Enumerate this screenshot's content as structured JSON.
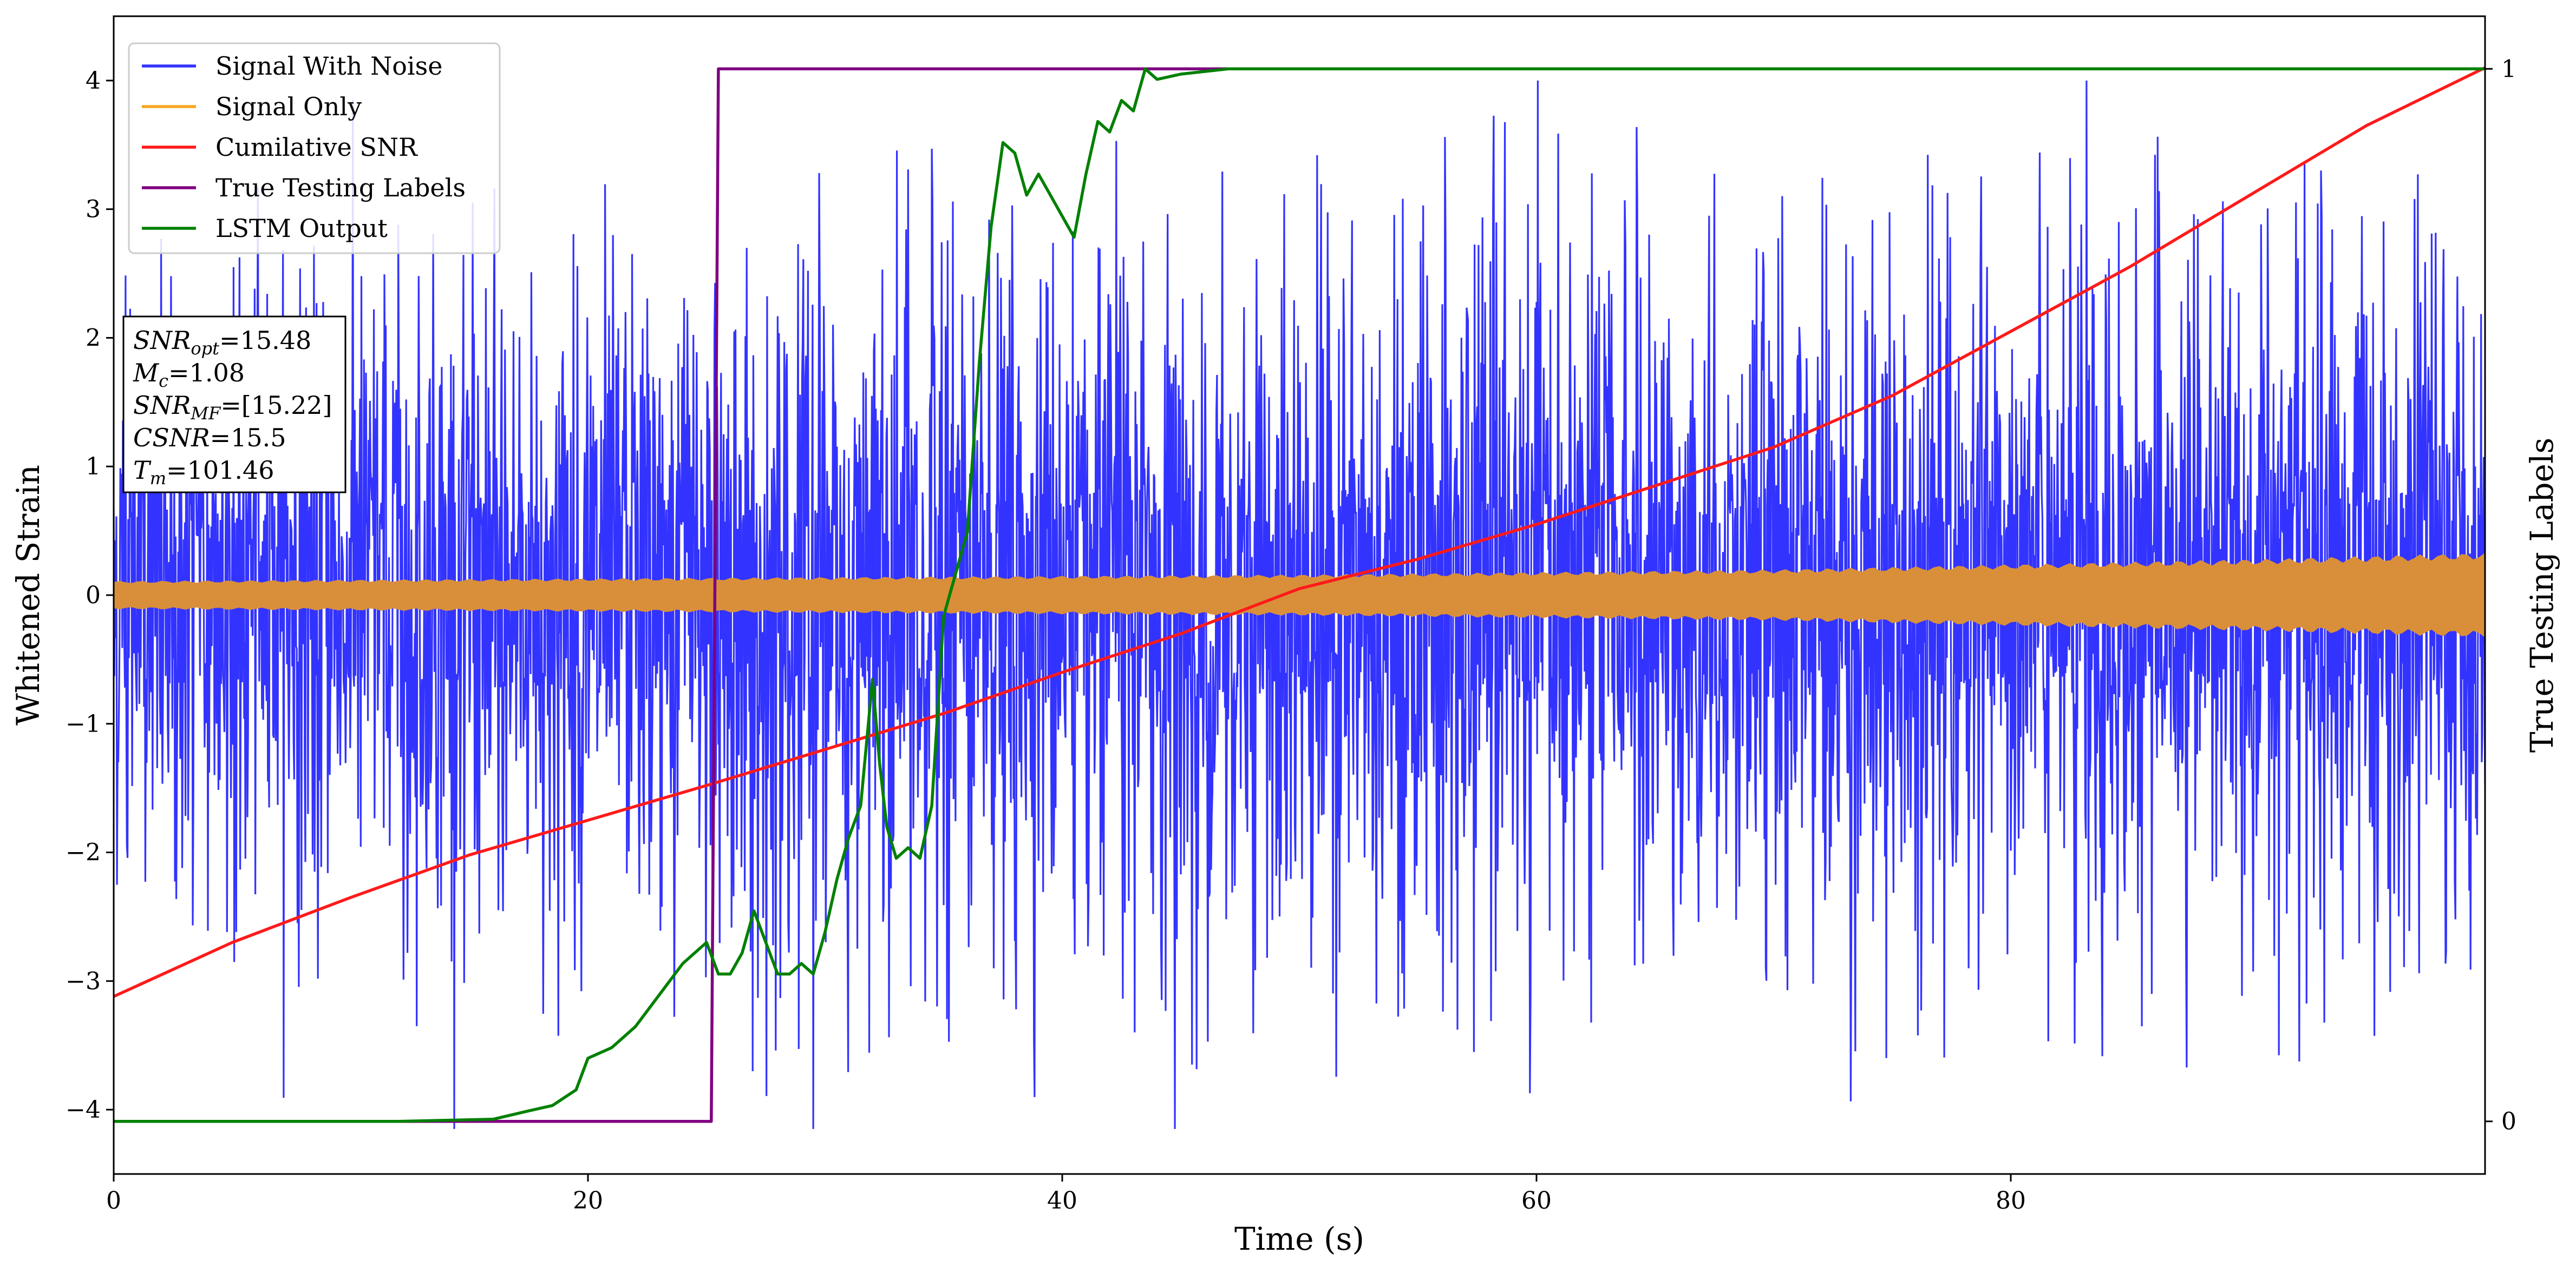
{
  "chart_data": {
    "type": "line",
    "xlabel": "Time (s)",
    "ylabel": "Whitened Strain",
    "ylabel_right": "True Testing Labels",
    "xlim": [
      0,
      100
    ],
    "ylim": [
      -4.5,
      4.5
    ],
    "ylim_right": [
      -0.05,
      1.05
    ],
    "x_ticks": [
      "0",
      "20",
      "40",
      "60",
      "80"
    ],
    "y_ticks": [
      "−4",
      "−3",
      "−2",
      "−1",
      "0",
      "1",
      "2",
      "3",
      "4"
    ],
    "y_ticks_right": [
      "0",
      "1"
    ],
    "legend_position": "top-left",
    "series": [
      {
        "name": "Signal With Noise",
        "color": "#3333ff",
        "axis": "left",
        "kind": "noise",
        "envelope_x": [
          0,
          10,
          20,
          30,
          40,
          50,
          60,
          70,
          80,
          90,
          100
        ],
        "envelope_amplitude": [
          2.6,
          2.8,
          2.8,
          3.0,
          3.1,
          3.2,
          3.1,
          3.0,
          3.0,
          3.1,
          3.0
        ]
      },
      {
        "name": "Signal Only",
        "color": "#f5a623",
        "render_color": "#d98f3a",
        "axis": "left",
        "kind": "band",
        "x": [
          0,
          10,
          20,
          30,
          40,
          50,
          60,
          70,
          80,
          90,
          100
        ],
        "amplitude": [
          0.11,
          0.12,
          0.13,
          0.14,
          0.15,
          0.16,
          0.18,
          0.2,
          0.24,
          0.28,
          0.33
        ]
      },
      {
        "name": "Cumilative SNR",
        "color": "#ff1a1a",
        "axis": "left",
        "x": [
          0,
          5,
          10,
          15,
          20,
          25,
          30,
          35,
          40,
          45,
          50,
          55,
          60,
          65,
          70,
          75,
          80,
          85,
          90,
          95,
          100
        ],
        "y": [
          -3.12,
          -2.7,
          -2.35,
          -2.02,
          -1.75,
          -1.48,
          -1.2,
          -0.92,
          -0.6,
          -0.3,
          0.05,
          0.28,
          0.55,
          0.85,
          1.15,
          1.55,
          2.05,
          2.55,
          3.1,
          3.65,
          4.1
        ]
      },
      {
        "name": "True Testing Labels",
        "color": "#800080",
        "axis": "right",
        "x": [
          0,
          25.2,
          25.5,
          60
        ],
        "y": [
          0,
          0,
          1,
          1
        ]
      },
      {
        "name": "LSTM Output",
        "color": "#008000",
        "axis": "right",
        "x": [
          0,
          12,
          16,
          17.5,
          18.5,
          19.5,
          20,
          21,
          22,
          23,
          24,
          25,
          25.5,
          26,
          26.5,
          27,
          27.5,
          28,
          28.5,
          29,
          29.5,
          30,
          30.5,
          31,
          31.5,
          32,
          32.3,
          32.6,
          33,
          33.5,
          34,
          34.5,
          35,
          35.5,
          36,
          36.5,
          37,
          37.5,
          38,
          38.5,
          39,
          39.5,
          40,
          40.5,
          41,
          41.5,
          42,
          42.5,
          43,
          43.5,
          44,
          45,
          47,
          50,
          55,
          60,
          100
        ],
        "y": [
          0,
          0,
          0.002,
          0.01,
          0.015,
          0.03,
          0.06,
          0.07,
          0.09,
          0.12,
          0.15,
          0.17,
          0.14,
          0.14,
          0.16,
          0.2,
          0.17,
          0.14,
          0.14,
          0.15,
          0.14,
          0.18,
          0.23,
          0.27,
          0.3,
          0.42,
          0.34,
          0.28,
          0.25,
          0.26,
          0.25,
          0.3,
          0.48,
          0.52,
          0.56,
          0.72,
          0.85,
          0.93,
          0.92,
          0.88,
          0.9,
          0.88,
          0.86,
          0.84,
          0.9,
          0.95,
          0.94,
          0.97,
          0.96,
          1.0,
          0.99,
          0.995,
          1.0,
          1.0,
          1.0,
          1.0,
          1.0
        ]
      }
    ],
    "info_box": [
      {
        "main": "SNR",
        "sub": "opt",
        "value": "=15.48"
      },
      {
        "main": "M",
        "sub": "c",
        "value": "=1.08"
      },
      {
        "main": "SNR",
        "sub": "MF",
        "value": "=[15.22]"
      },
      {
        "main": "CSNR",
        "sub": "",
        "value": "=15.5"
      },
      {
        "main": "T",
        "sub": "m",
        "value": "=101.46"
      }
    ]
  }
}
